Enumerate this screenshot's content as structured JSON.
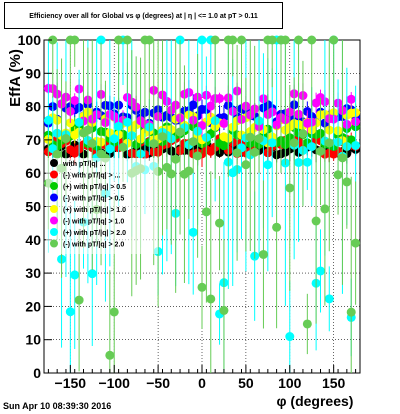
{
  "chart_data": {
    "type": "scatter",
    "title": "Efficiency over all for Global vs φ (degrees) at | η | <= 1.0 at pT > 0.11",
    "xlabel": "φ (degrees)",
    "ylabel": "EffA (%)",
    "xlim": [
      -180,
      180
    ],
    "ylim": [
      0,
      100
    ],
    "x_ticks": [
      -150,
      -100,
      -50,
      0,
      50,
      100,
      150
    ],
    "y_ticks": [
      0,
      10,
      20,
      30,
      40,
      50,
      60,
      70,
      80,
      90,
      100
    ],
    "grid": true,
    "legend_position": "center-left",
    "series": [
      {
        "name": "with pT/|q| ...",
        "color": "#000000",
        "marker": "circle",
        "center": 67,
        "spread": 1.5
      },
      {
        "name": "(-) with pT/|q| > ...",
        "color": "#ff0000",
        "marker": "circle",
        "center": 68,
        "spread": 2.5
      },
      {
        "name": "(+) with pT/|q| > 0.5",
        "color": "#00cc00",
        "marker": "circle",
        "center": 71,
        "spread": 3
      },
      {
        "name": "(-) with pT/|q| > 0.5",
        "color": "#0000ff",
        "marker": "circle",
        "center": 78,
        "spread": 3
      },
      {
        "name": "(+) with pT/|q| > 1.0",
        "color": "#ffff00",
        "marker": "circle",
        "center": 74,
        "spread": 5
      },
      {
        "name": "(-) with pT/|q| > 1.0",
        "color": "#ff00ff",
        "marker": "circle",
        "center": 80,
        "spread": 6
      },
      {
        "name": "(+) with pT/|q| > 2.0",
        "color": "#00ffff",
        "marker": "circle",
        "center": 68,
        "spread": 30
      },
      {
        "name": "(-) with pT/|q| > 2.0",
        "color": "#66cc55",
        "marker": "circle",
        "center": 65,
        "spread": 28
      }
    ]
  },
  "timestamp": "Sun Apr 10 08:39:30 2016"
}
